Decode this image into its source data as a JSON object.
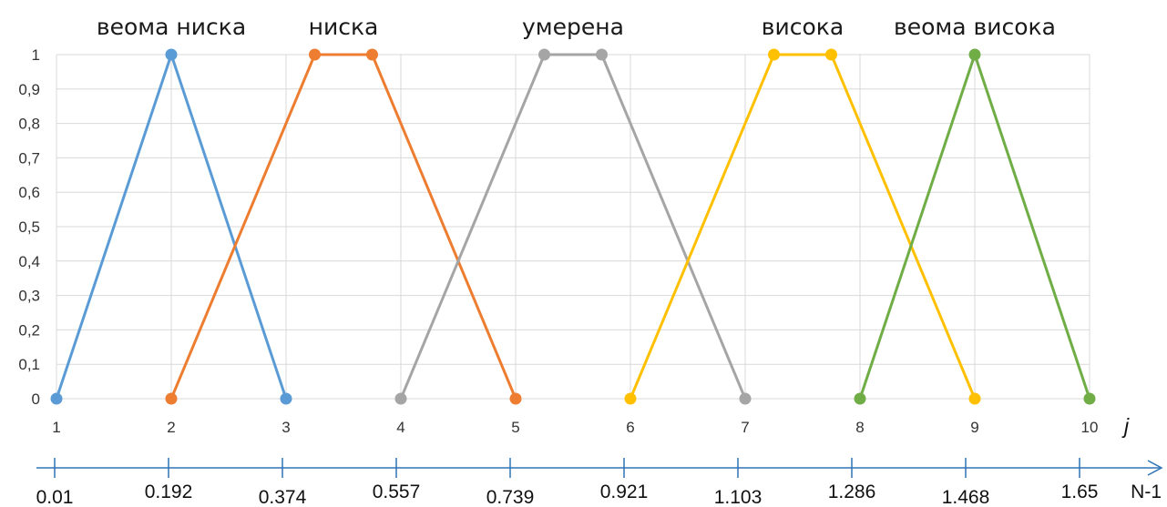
{
  "chart_data": {
    "type": "line",
    "x_ticks": [
      1,
      2,
      3,
      4,
      5,
      6,
      7,
      8,
      9,
      10
    ],
    "y_ticks": [
      "0",
      "0,1",
      "0,2",
      "0,3",
      "0,4",
      "0,5",
      "0,6",
      "0,7",
      "0,8",
      "0,9",
      "1"
    ],
    "xlim": [
      1,
      10
    ],
    "ylim": [
      0,
      1
    ],
    "xlabel": "j",
    "grid": true,
    "series": [
      {
        "name": "веома ниска",
        "color": "#5B9BD5",
        "points": [
          [
            1,
            0
          ],
          [
            2,
            1
          ],
          [
            3,
            0
          ]
        ]
      },
      {
        "name": "ниска",
        "color": "#ED7D31",
        "points": [
          [
            2,
            0
          ],
          [
            3.25,
            1
          ],
          [
            3.75,
            1
          ],
          [
            5,
            0
          ]
        ]
      },
      {
        "name": "умерена",
        "color": "#A5A5A5",
        "points": [
          [
            4,
            0
          ],
          [
            5.25,
            1
          ],
          [
            5.75,
            1
          ],
          [
            7,
            0
          ]
        ]
      },
      {
        "name": "висока",
        "color": "#FFC000",
        "points": [
          [
            6,
            0
          ],
          [
            7.25,
            1
          ],
          [
            7.75,
            1
          ],
          [
            9,
            0
          ]
        ]
      },
      {
        "name": "веома висока",
        "color": "#70AD47",
        "points": [
          [
            8,
            0
          ],
          [
            9,
            1
          ],
          [
            10,
            0
          ]
        ]
      }
    ],
    "secondary_axis": {
      "label": "N-1",
      "color": "#2E75B6",
      "ticks": [
        "0.01",
        "0.192",
        "0.374",
        "0.557",
        "0.739",
        "0.921",
        "1.103",
        "1.286",
        "1.468",
        "1.65"
      ]
    }
  }
}
